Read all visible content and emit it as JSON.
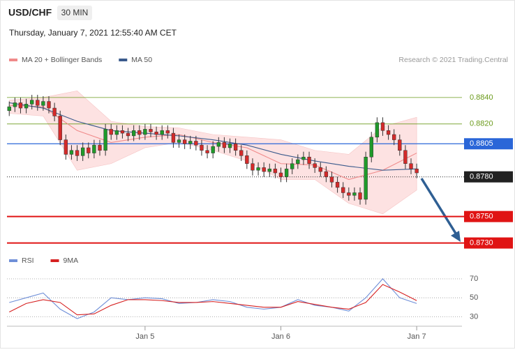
{
  "header": {
    "symbol": "USD/CHF",
    "interval": "30 MIN",
    "timestamp": "Thursday, January 7, 2021 12:55:40 AM CET",
    "copyright": "Research © 2021 Trading.Central"
  },
  "chart_data": [
    {
      "type": "candlestick",
      "xlim": [
        -0.4,
        80
      ],
      "ylim": [
        0.8724,
        0.8861
      ],
      "up_color": "#1f9a2a",
      "down_color": "#d42a2a",
      "open": [
        0.883,
        0.8833,
        0.8836,
        0.8832,
        0.8835,
        0.8838,
        0.8834,
        0.8837,
        0.8832,
        0.8826,
        0.8808,
        0.8797,
        0.88,
        0.8796,
        0.8802,
        0.8798,
        0.8804,
        0.88,
        0.8816,
        0.8812,
        0.8815,
        0.8813,
        0.8811,
        0.8815,
        0.8812,
        0.8816,
        0.8814,
        0.8812,
        0.8815,
        0.8813,
        0.8806,
        0.8808,
        0.8805,
        0.8807,
        0.8804,
        0.88,
        0.8798,
        0.8803,
        0.8806,
        0.8802,
        0.8805,
        0.88,
        0.8796,
        0.879,
        0.8785,
        0.8787,
        0.8784,
        0.8786,
        0.8783,
        0.878,
        0.8786,
        0.879,
        0.8793,
        0.8795,
        0.879,
        0.8787,
        0.8784,
        0.878,
        0.8776,
        0.8772,
        0.8768,
        0.8766,
        0.8768,
        0.8763,
        0.8795,
        0.881,
        0.8821,
        0.8815,
        0.8812,
        0.8808,
        0.88,
        0.879,
        0.8786
      ],
      "high": [
        0.8837,
        0.884,
        0.884,
        0.8839,
        0.8842,
        0.8842,
        0.8841,
        0.8841,
        0.8836,
        0.883,
        0.8812,
        0.8804,
        0.8804,
        0.8806,
        0.8806,
        0.8808,
        0.8808,
        0.882,
        0.882,
        0.8819,
        0.8819,
        0.8817,
        0.8819,
        0.8819,
        0.882,
        0.882,
        0.8818,
        0.8819,
        0.8819,
        0.8817,
        0.8812,
        0.8812,
        0.8811,
        0.8811,
        0.8808,
        0.8804,
        0.8807,
        0.881,
        0.881,
        0.8809,
        0.8809,
        0.8804,
        0.88,
        0.8794,
        0.8791,
        0.8791,
        0.879,
        0.879,
        0.8787,
        0.879,
        0.8794,
        0.8797,
        0.8799,
        0.8799,
        0.8794,
        0.8791,
        0.8788,
        0.8784,
        0.878,
        0.8776,
        0.8772,
        0.8772,
        0.8772,
        0.8799,
        0.8814,
        0.8825,
        0.8825,
        0.8819,
        0.8816,
        0.8812,
        0.8804,
        0.8794,
        0.879
      ],
      "low": [
        0.8826,
        0.8829,
        0.8828,
        0.8828,
        0.8831,
        0.883,
        0.883,
        0.8828,
        0.8822,
        0.8804,
        0.8793,
        0.8793,
        0.8792,
        0.8792,
        0.8794,
        0.8794,
        0.8796,
        0.8796,
        0.8808,
        0.8808,
        0.8809,
        0.8807,
        0.8807,
        0.8808,
        0.8808,
        0.881,
        0.8808,
        0.8808,
        0.8809,
        0.8802,
        0.8802,
        0.8801,
        0.8801,
        0.88,
        0.8796,
        0.8794,
        0.8794,
        0.8799,
        0.8798,
        0.8798,
        0.8796,
        0.8792,
        0.8786,
        0.8781,
        0.8781,
        0.878,
        0.878,
        0.8779,
        0.8776,
        0.8776,
        0.8782,
        0.8786,
        0.8789,
        0.8786,
        0.8783,
        0.878,
        0.8776,
        0.8772,
        0.8768,
        0.8764,
        0.8762,
        0.8762,
        0.8759,
        0.8759,
        0.8791,
        0.8806,
        0.8811,
        0.8808,
        0.8804,
        0.8796,
        0.8786,
        0.8782,
        0.8779
      ],
      "close": [
        0.8833,
        0.8836,
        0.8832,
        0.8835,
        0.8838,
        0.8834,
        0.8837,
        0.8832,
        0.8826,
        0.8808,
        0.8797,
        0.88,
        0.8796,
        0.8802,
        0.8798,
        0.8804,
        0.88,
        0.8816,
        0.8812,
        0.8815,
        0.8813,
        0.8811,
        0.8815,
        0.8812,
        0.8816,
        0.8814,
        0.8812,
        0.8815,
        0.8813,
        0.8806,
        0.8808,
        0.8805,
        0.8807,
        0.8804,
        0.88,
        0.8798,
        0.8803,
        0.8806,
        0.8802,
        0.8805,
        0.88,
        0.8796,
        0.879,
        0.8785,
        0.8787,
        0.8784,
        0.8786,
        0.8783,
        0.878,
        0.8786,
        0.879,
        0.8793,
        0.8795,
        0.879,
        0.8787,
        0.8784,
        0.878,
        0.8776,
        0.8772,
        0.8768,
        0.8766,
        0.8768,
        0.8763,
        0.8795,
        0.881,
        0.8821,
        0.8815,
        0.8812,
        0.8808,
        0.88,
        0.879,
        0.8786,
        0.8783
      ],
      "bands": {
        "color": "#fde2e2",
        "x": [
          0,
          6,
          12,
          18,
          24,
          30,
          36,
          42,
          48,
          54,
          60,
          66,
          72
        ],
        "upper": [
          0.8838,
          0.884,
          0.8845,
          0.8822,
          0.8818,
          0.8817,
          0.8812,
          0.881,
          0.8808,
          0.88,
          0.8797,
          0.8818,
          0.8825
        ],
        "lower": [
          0.8828,
          0.8826,
          0.8785,
          0.879,
          0.8802,
          0.8806,
          0.88,
          0.8792,
          0.8778,
          0.8778,
          0.876,
          0.8752,
          0.877
        ]
      },
      "series": [
        {
          "name": "MA 20 + Bollinger Bands",
          "color": "#f08a8a",
          "x": [
            0,
            6,
            12,
            18,
            24,
            30,
            36,
            42,
            48,
            54,
            60,
            66,
            72
          ],
          "values": [
            0.8834,
            0.8833,
            0.8815,
            0.8806,
            0.881,
            0.8812,
            0.8806,
            0.8802,
            0.879,
            0.8789,
            0.8778,
            0.8785,
            0.8798
          ]
        },
        {
          "name": "MA 50",
          "color": "#3a5a8c",
          "x": [
            0,
            6,
            12,
            18,
            24,
            30,
            36,
            42,
            48,
            54,
            60,
            66,
            72
          ],
          "values": [
            0.8836,
            0.8832,
            0.8822,
            0.8815,
            0.8813,
            0.8811,
            0.8808,
            0.8804,
            0.8797,
            0.8792,
            0.8788,
            0.8785,
            0.8786
          ]
        }
      ],
      "levels": [
        {
          "value": 0.884,
          "label": "0.8840",
          "color": "#6a9a1a",
          "style": "thin",
          "tag": false
        },
        {
          "value": 0.882,
          "label": "0.8820",
          "color": "#6a9a1a",
          "style": "thin",
          "tag": false
        },
        {
          "value": 0.8805,
          "label": "0.8805",
          "color": "#2a66d8",
          "style": "solid",
          "tag": true
        },
        {
          "value": 0.878,
          "label": "0.8780",
          "color": "#222222",
          "style": "dotted",
          "tag": true
        },
        {
          "value": 0.875,
          "label": "0.8750",
          "color": "#e01414",
          "style": "thick",
          "tag": true
        },
        {
          "value": 0.873,
          "label": "0.8730",
          "color": "#e01414",
          "style": "thick",
          "tag": true
        }
      ]
    },
    {
      "type": "line",
      "xlim": [
        -0.4,
        80
      ],
      "ylim": [
        20,
        81
      ],
      "yticks": [
        30,
        50,
        70
      ],
      "xticks": [
        {
          "value": 24,
          "label": "Jan 5"
        },
        {
          "value": 48,
          "label": "Jan 6"
        },
        {
          "value": 72,
          "label": "Jan 7"
        }
      ],
      "series": [
        {
          "name": "RSI",
          "color": "#6f8fd8",
          "x": [
            0,
            3,
            6,
            9,
            12,
            15,
            18,
            21,
            24,
            27,
            30,
            33,
            36,
            39,
            42,
            45,
            48,
            51,
            54,
            57,
            60,
            63,
            66,
            69,
            72
          ],
          "values": [
            45,
            50,
            55,
            38,
            28,
            35,
            50,
            48,
            50,
            49,
            44,
            45,
            48,
            46,
            40,
            38,
            40,
            48,
            42,
            40,
            36,
            50,
            70,
            50,
            44
          ]
        },
        {
          "name": "9MA",
          "color": "#d62020",
          "x": [
            0,
            3,
            6,
            9,
            12,
            15,
            18,
            21,
            24,
            27,
            30,
            33,
            36,
            39,
            42,
            45,
            48,
            51,
            54,
            57,
            60,
            63,
            66,
            69,
            72
          ],
          "values": [
            35,
            44,
            48,
            45,
            32,
            33,
            42,
            48,
            48,
            47,
            45,
            45,
            46,
            44,
            42,
            40,
            40,
            46,
            43,
            40,
            38,
            45,
            64,
            56,
            47
          ]
        }
      ]
    }
  ]
}
